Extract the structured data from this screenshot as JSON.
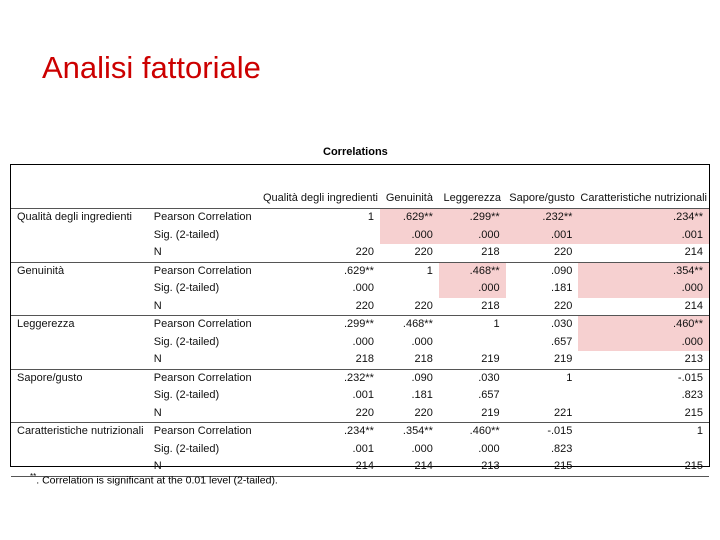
{
  "title": "Analisi fattoriale",
  "table": {
    "caption": "Correlations",
    "columns": [
      "Qualità degli ingredienti",
      "Genuinità",
      "Leggerezza",
      "Sapore/gusto",
      "Caratteristiche nutrizionali"
    ],
    "rows": [
      {
        "name": "Qualità degli ingredienti",
        "pearson": [
          "1",
          ".629**",
          ".299**",
          ".232**",
          ".234**"
        ],
        "sig": [
          "",
          ".000",
          ".000",
          ".001",
          ".001"
        ],
        "n": [
          "220",
          "220",
          "218",
          "220",
          "214"
        ]
      },
      {
        "name": "Genuinità",
        "pearson": [
          ".629**",
          "1",
          ".468**",
          ".090",
          ".354**"
        ],
        "sig": [
          ".000",
          "",
          ".000",
          ".181",
          ".000"
        ],
        "n": [
          "220",
          "220",
          "218",
          "220",
          "214"
        ]
      },
      {
        "name": "Leggerezza",
        "pearson": [
          ".299**",
          ".468**",
          "1",
          ".030",
          ".460**"
        ],
        "sig": [
          ".000",
          ".000",
          "",
          ".657",
          ".000"
        ],
        "n": [
          "218",
          "218",
          "219",
          "219",
          "213"
        ]
      },
      {
        "name": "Sapore/gusto",
        "pearson": [
          ".232**",
          ".090",
          ".030",
          "1",
          "-.015"
        ],
        "sig": [
          ".001",
          ".181",
          ".657",
          "",
          ".823"
        ],
        "n": [
          "220",
          "220",
          "219",
          "221",
          "215"
        ]
      },
      {
        "name": "Caratteristiche nutrizionali",
        "pearson": [
          ".234**",
          ".354**",
          ".460**",
          "-.015",
          "1"
        ],
        "sig": [
          ".001",
          ".000",
          ".000",
          ".823",
          ""
        ],
        "n": [
          "214",
          "214",
          "213",
          "215",
          "215"
        ]
      }
    ],
    "stat_labels": {
      "pearson": "Pearson Correlation",
      "sig": "Sig. (2-tailed)",
      "n": "N"
    },
    "highlight_color": "#f6d0d0",
    "footnote_mark": "**",
    "footnote": ". Correlation is significant at the 0.01 level (2-tailed)."
  }
}
